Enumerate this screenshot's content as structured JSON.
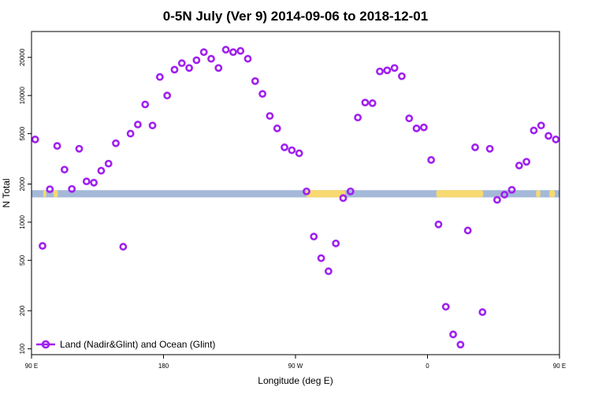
{
  "chart_data": {
    "type": "scatter",
    "title": "0-5N July (Ver 9)   2014-09-06 to 2018-12-01",
    "xlabel": "Longitude (deg E)",
    "ylabel": "N Total",
    "xlim": [
      90,
      450
    ],
    "ylim": [
      90,
      32000
    ],
    "yscale": "log",
    "grid": false,
    "legend_position": "bottom-left",
    "legend": [
      "Land (Nadir&Glint) and Ocean (Glint)"
    ],
    "xticks": [
      {
        "value": 90,
        "label": "90 E"
      },
      {
        "value": 180,
        "label": "180"
      },
      {
        "value": 270,
        "label": "90 W"
      },
      {
        "value": 360,
        "label": "0"
      },
      {
        "value": 450,
        "label": "90 E"
      }
    ],
    "yticks": [
      {
        "value": 100,
        "label": "100"
      },
      {
        "value": 200,
        "label": "200"
      },
      {
        "value": 500,
        "label": "500"
      },
      {
        "value": 1000,
        "label": "1000"
      },
      {
        "value": 2000,
        "label": "2000"
      },
      {
        "value": 5000,
        "label": "5000"
      },
      {
        "value": 10000,
        "label": "10000"
      },
      {
        "value": 20000,
        "label": "20000"
      }
    ],
    "colors": {
      "points": "#a020f0",
      "ocean_band": "#a4b9d8",
      "land_band": "#f8d870"
    },
    "surface_band": {
      "y_range": [
        1570,
        1790
      ],
      "land_segments": [
        [
          98,
          100
        ],
        [
          105,
          108
        ],
        [
          277,
          304
        ],
        [
          366,
          398
        ],
        [
          434,
          437
        ],
        [
          443,
          447
        ]
      ]
    },
    "series": [
      {
        "name": "Land (Nadir&Glint) and Ocean (Glint)",
        "x": [
          92.5,
          97.5,
          102.5,
          107.5,
          112.5,
          117.5,
          122.5,
          127.5,
          132.5,
          137.5,
          142.5,
          147.5,
          152.5,
          157.5,
          162.5,
          167.5,
          172.5,
          177.5,
          182.5,
          187.5,
          192.5,
          197.5,
          202.5,
          207.5,
          212.5,
          217.5,
          222.5,
          227.5,
          232.5,
          237.5,
          242.5,
          247.5,
          252.5,
          257.5,
          262.5,
          267.5,
          272.5,
          277.5,
          282.5,
          287.5,
          292.5,
          297.5,
          302.5,
          307.5,
          312.5,
          317.5,
          322.5,
          327.5,
          332.5,
          337.5,
          342.5,
          347.5,
          352.5,
          357.5,
          362.5,
          367.5,
          372.5,
          377.5,
          382.5,
          387.5,
          392.5,
          397.5,
          402.5,
          407.5,
          412.5,
          417.5,
          422.5,
          427.5,
          432.5,
          437.5,
          442.5,
          447.5
        ],
        "y": [
          4500,
          650,
          1820,
          4000,
          2600,
          1830,
          3800,
          2100,
          2050,
          2550,
          2900,
          4200,
          640,
          5000,
          5900,
          8500,
          5800,
          14000,
          10000,
          16000,
          18000,
          16500,
          19000,
          22000,
          19500,
          16500,
          23000,
          22000,
          22500,
          19500,
          13000,
          10300,
          6900,
          5500,
          3900,
          3700,
          3500,
          1750,
          770,
          520,
          410,
          680,
          1550,
          1750,
          6700,
          8800,
          8700,
          15500,
          15800,
          16500,
          14200,
          6600,
          5500,
          5600,
          3100,
          960,
          215,
          130,
          108,
          860,
          3900,
          195,
          3800,
          1500,
          1650,
          1800,
          2800,
          3000,
          5300,
          5800,
          4800,
          4500
        ]
      }
    ]
  }
}
